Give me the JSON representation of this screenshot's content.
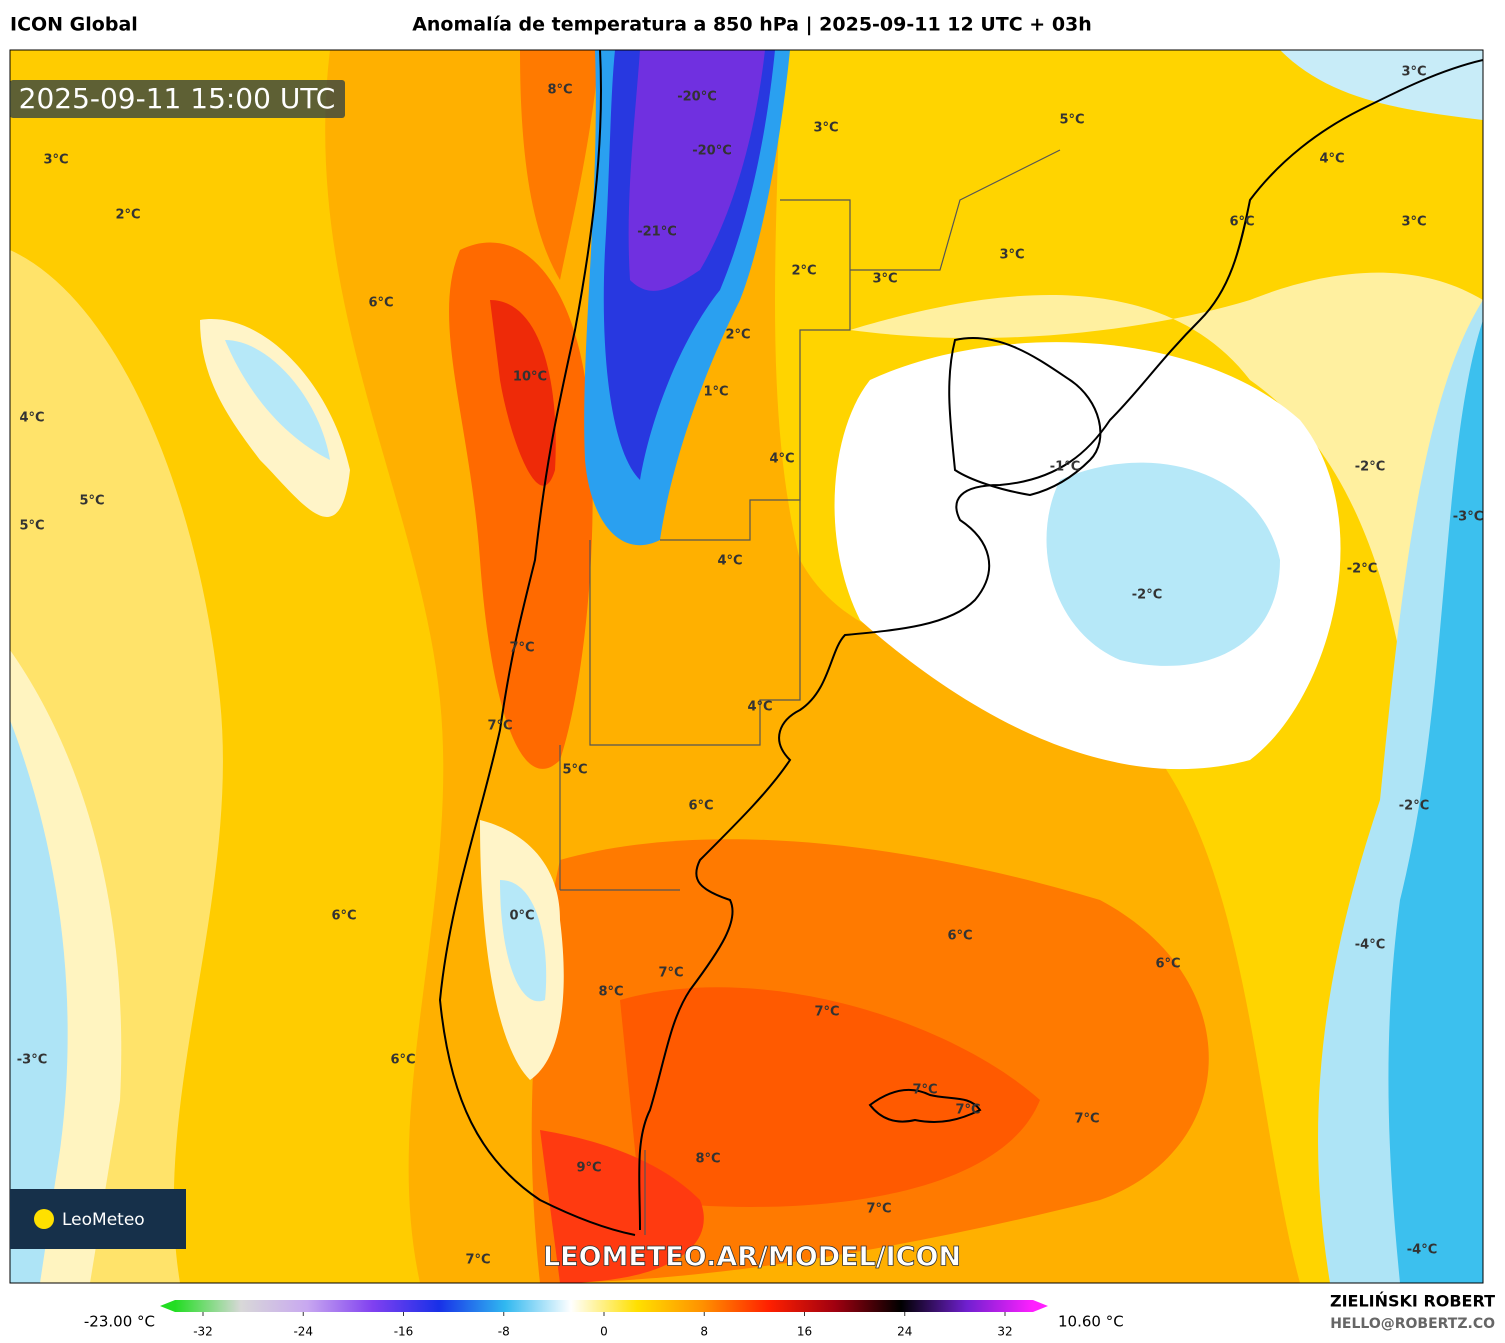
{
  "header": {
    "model": "ICON Global",
    "title": "Anomalía de temperatura a 850 hPa | 2025-09-11 12 UTC + 03h"
  },
  "map": {
    "valid_time": "2025-09-11 15:00 UTC",
    "watermark": "LEOMETEO.AR/MODEL/ICON",
    "logo": "LeoMeteo",
    "labels": [
      "8°C",
      "-20°C",
      "3°C",
      "3°C",
      "5°C",
      "3°C",
      "-20°C",
      "4°C",
      "2°C",
      "-21°C",
      "3°C",
      "6°C",
      "2°C",
      "3°C",
      "3°C",
      "6°C",
      "2°C",
      "10°C",
      "1°C",
      "4°C",
      "4°C",
      "-1°C",
      "-2°C",
      "5°C",
      "5°C",
      "-3°C",
      "4°C",
      "-2°C",
      "-2°C",
      "7°C",
      "4°C",
      "7°C",
      "5°C",
      "6°C",
      "-2°C",
      "6°C",
      "0°C",
      "6°C",
      "6°C",
      "-4°C",
      "7°C",
      "8°C",
      "7°C",
      "-3°C",
      "6°C",
      "7°C",
      "7°C",
      "7°C",
      "8°C",
      "9°C",
      "7°C",
      "7°C",
      "-4°C"
    ]
  },
  "colorbar": {
    "min_label": "-23.00 °C",
    "max_label": "10.60 °C",
    "ticks": [
      -32,
      -24,
      -16,
      -8,
      0,
      8,
      16,
      24,
      32
    ],
    "colors": [
      "#22dd22",
      "#d8d8d8",
      "#c8a8f0",
      "#8040f0",
      "#1830e8",
      "#30b8f0",
      "#ffffff",
      "#ffe000",
      "#ff9000",
      "#ff2000",
      "#a00010",
      "#000000",
      "#7020d0",
      "#ff20ff"
    ]
  },
  "footer": {
    "author": "ZIELIŃSKI ROBERT",
    "contact": "HELLO@ROBERTZ.CO"
  }
}
